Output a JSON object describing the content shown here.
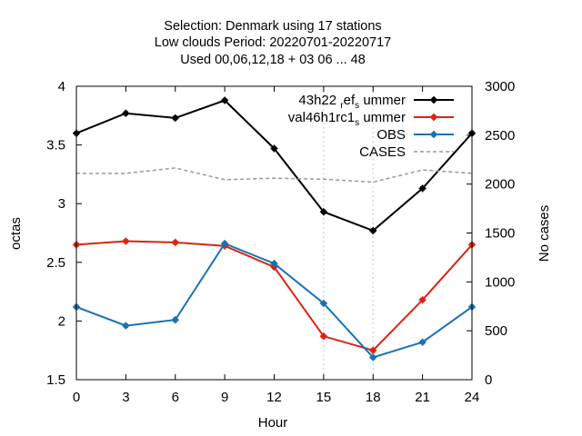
{
  "chart_data": {
    "type": "line",
    "title_lines": [
      "Selection: Denmark using    17 stations",
      "Low clouds   Period: 20220701-20220717",
      "Used  00,06,12,18  + 03 06 ... 48"
    ],
    "xlabel": "Hour",
    "ylabel": "octas",
    "y2label": "No cases",
    "x": [
      0,
      3,
      6,
      9,
      12,
      15,
      18,
      21,
      24
    ],
    "xticks": [
      "0",
      "3",
      "6",
      "9",
      "12",
      "15",
      "18",
      "21",
      "24"
    ],
    "xlim": [
      0,
      24
    ],
    "ylim": [
      1.5,
      4
    ],
    "yticks": [
      "1.5",
      "2",
      "2.5",
      "3",
      "3.5",
      "4"
    ],
    "y2lim": [
      0,
      3000
    ],
    "y2ticks": [
      "0",
      "500",
      "1000",
      "1500",
      "2000",
      "2500",
      "3000"
    ],
    "legend_position": "top-right",
    "series": [
      {
        "name": "43h22_ref_summer",
        "legend": {
          "parts": [
            "43h22 ",
            "r",
            "ef",
            "s",
            " ummer"
          ],
          "sub": [
            false,
            true,
            false,
            true,
            false
          ]
        },
        "color": "#000000",
        "axis": "left",
        "style": "solid",
        "values": [
          3.6,
          3.77,
          3.73,
          3.88,
          3.47,
          2.93,
          2.77,
          3.13,
          3.6
        ]
      },
      {
        "name": "val46h1rc1_summer",
        "legend": {
          "parts": [
            "val46h1rc1",
            "s",
            " ummer"
          ],
          "sub": [
            false,
            true,
            false
          ]
        },
        "color": "#dd2211",
        "axis": "left",
        "style": "solid",
        "values": [
          2.65,
          2.68,
          2.67,
          2.64,
          2.46,
          1.87,
          1.75,
          2.18,
          2.65
        ]
      },
      {
        "name": "OBS",
        "legend": {
          "parts": [
            "OBS"
          ],
          "sub": [
            false
          ]
        },
        "color": "#1a72b0",
        "axis": "left",
        "style": "solid",
        "values": [
          2.12,
          1.96,
          2.01,
          2.66,
          2.49,
          2.15,
          1.69,
          1.82,
          2.12
        ]
      },
      {
        "name": "CASES",
        "legend": {
          "parts": [
            "CASES"
          ],
          "sub": [
            false
          ]
        },
        "color": "#999999",
        "axis": "right",
        "style": "dashed",
        "values": [
          2110,
          2110,
          2165,
          2045,
          2060,
          2050,
          2020,
          2145,
          2110
        ]
      }
    ]
  }
}
